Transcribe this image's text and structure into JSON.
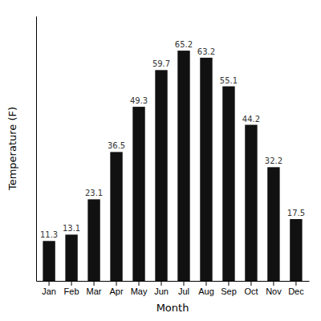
{
  "chart_data": {
    "type": "bar",
    "categories": [
      "Jan",
      "Feb",
      "Mar",
      "Apr",
      "May",
      "Jun",
      "Jul",
      "Aug",
      "Sep",
      "Oct",
      "Nov",
      "Dec"
    ],
    "values": [
      11.3,
      13.1,
      23.1,
      36.5,
      49.3,
      59.7,
      65.2,
      63.2,
      55.1,
      44.2,
      32.2,
      17.5
    ],
    "color": "#111111",
    "xlabel": "Month",
    "ylabel": "Temperature (F)",
    "ylim": [
      0,
      75
    ],
    "yticks": [],
    "tick_labels": "x",
    "data_labels": true
  }
}
